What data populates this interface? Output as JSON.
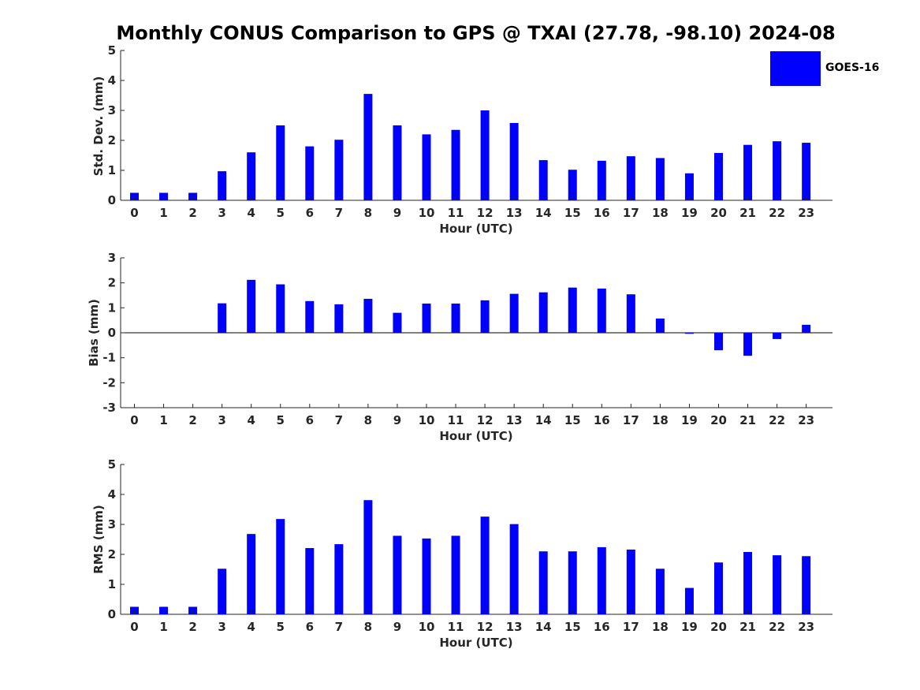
{
  "title": "Monthly CONUS Comparison to GPS @ TXAI (27.78, -98.10) 2024-08",
  "legend": {
    "label": "GOES-16",
    "color": "#0000ff"
  },
  "chart_data": [
    {
      "type": "bar",
      "ylabel": "Std. Dev. (mm)",
      "xlabel": "Hour (UTC)",
      "ylim": [
        0,
        5
      ],
      "yticks": [
        "0",
        "1",
        "2",
        "3",
        "4",
        "5"
      ],
      "categories": [
        "0",
        "1",
        "2",
        "3",
        "4",
        "5",
        "6",
        "7",
        "8",
        "9",
        "10",
        "11",
        "12",
        "13",
        "14",
        "15",
        "16",
        "17",
        "18",
        "19",
        "20",
        "21",
        "22",
        "23"
      ],
      "series": [
        {
          "name": "GOES-16",
          "color": "#0000ff",
          "values": [
            0.25,
            0.25,
            0.25,
            0.97,
            1.6,
            2.5,
            1.8,
            2.02,
            3.55,
            2.5,
            2.2,
            2.35,
            3.0,
            2.58,
            1.34,
            1.02,
            1.32,
            1.47,
            1.41,
            0.9,
            1.58,
            1.85,
            1.97,
            1.92
          ]
        }
      ]
    },
    {
      "type": "bar",
      "ylabel": "Bias (mm)",
      "xlabel": "Hour (UTC)",
      "ylim": [
        -3,
        3
      ],
      "yticks": [
        "-3",
        "-2",
        "-1",
        "0",
        "1",
        "2",
        "3"
      ],
      "categories": [
        "0",
        "1",
        "2",
        "3",
        "4",
        "5",
        "6",
        "7",
        "8",
        "9",
        "10",
        "11",
        "12",
        "13",
        "14",
        "15",
        "16",
        "17",
        "18",
        "19",
        "20",
        "21",
        "22",
        "23"
      ],
      "series": [
        {
          "name": "GOES-16",
          "color": "#0000ff",
          "values": [
            0.0,
            0.0,
            0.0,
            1.18,
            2.12,
            1.94,
            1.27,
            1.14,
            1.36,
            0.8,
            1.17,
            1.17,
            1.3,
            1.56,
            1.62,
            1.81,
            1.77,
            1.54,
            0.57,
            -0.04,
            -0.7,
            -0.92,
            -0.25,
            0.32
          ]
        }
      ]
    },
    {
      "type": "bar",
      "ylabel": "RMS (mm)",
      "xlabel": "Hour (UTC)",
      "ylim": [
        0,
        5
      ],
      "yticks": [
        "0",
        "1",
        "2",
        "3",
        "4",
        "5"
      ],
      "categories": [
        "0",
        "1",
        "2",
        "3",
        "4",
        "5",
        "6",
        "7",
        "8",
        "9",
        "10",
        "11",
        "12",
        "13",
        "14",
        "15",
        "16",
        "17",
        "18",
        "19",
        "20",
        "21",
        "22",
        "23"
      ],
      "series": [
        {
          "name": "GOES-16",
          "color": "#0000ff",
          "values": [
            0.25,
            0.25,
            0.25,
            1.52,
            2.68,
            3.18,
            2.21,
            2.34,
            3.81,
            2.62,
            2.53,
            2.62,
            3.26,
            3.01,
            2.1,
            2.1,
            2.24,
            2.16,
            1.52,
            0.88,
            1.73,
            2.08,
            1.97,
            1.94
          ]
        }
      ]
    }
  ]
}
